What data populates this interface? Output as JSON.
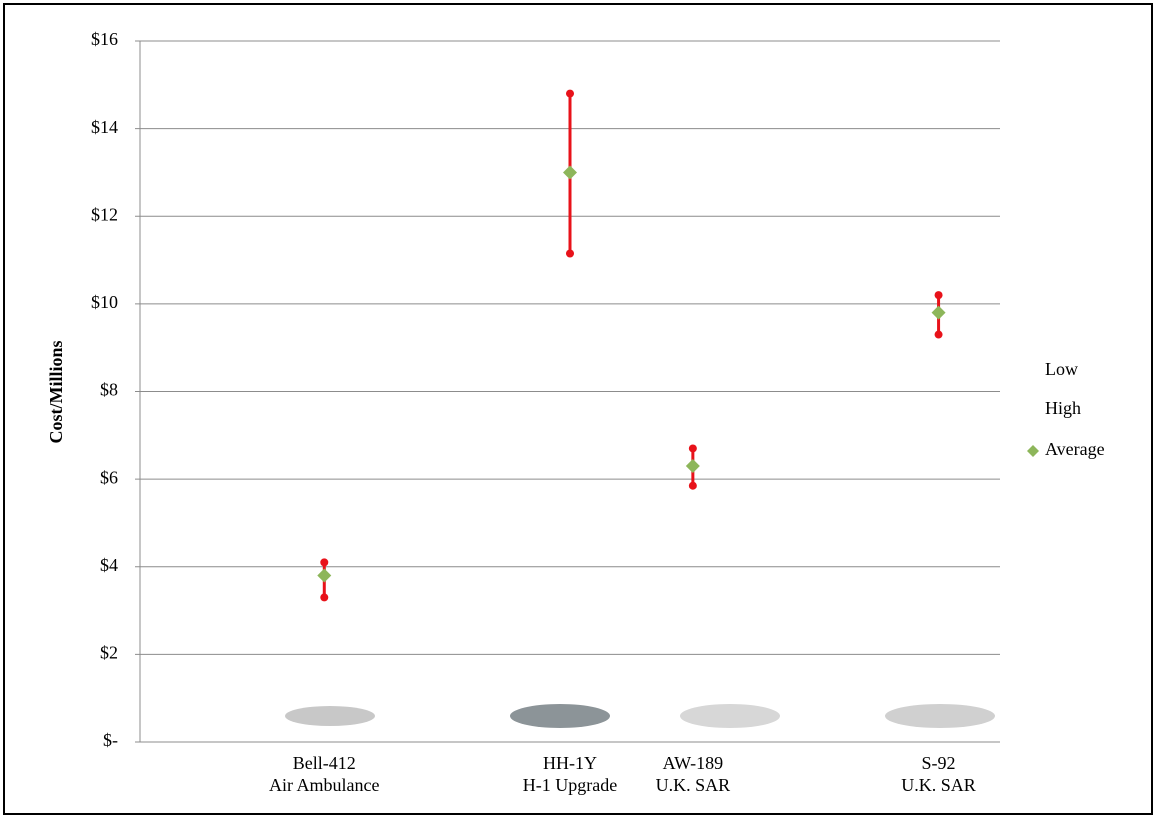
{
  "chart_data": {
    "type": "hilo",
    "y_axis_label": "Cost/Millions",
    "categories": [
      null,
      "Bell-412\nAir Ambulance",
      null,
      "HH-1Y\nH-1 Upgrade",
      "AW-189\nU.K. SAR",
      null,
      "S-92\nU.K. SAR"
    ],
    "series": [
      {
        "name": "Low",
        "values": [
          null,
          3.3,
          null,
          11.15,
          5.85,
          null,
          9.3
        ]
      },
      {
        "name": "High",
        "values": [
          null,
          4.1,
          null,
          14.8,
          6.7,
          null,
          10.2
        ]
      },
      {
        "name": "Average",
        "color": "#8db65a",
        "values": [
          null,
          3.8,
          null,
          13.0,
          6.3,
          null,
          9.8
        ]
      }
    ],
    "hi_lo_color": "#e8121a",
    "ylim": [
      0,
      16
    ],
    "yticks": [
      {
        "value": 0,
        "label": "$-"
      },
      {
        "value": 2,
        "label": "$2"
      },
      {
        "value": 4,
        "label": "$4"
      },
      {
        "value": 6,
        "label": "$6"
      },
      {
        "value": 8,
        "label": "$8"
      },
      {
        "value": 10,
        "label": "$10"
      },
      {
        "value": 12,
        "label": "$12"
      },
      {
        "value": 14,
        "label": "$14"
      },
      {
        "value": 16,
        "label": "$16"
      }
    ],
    "grid": true
  }
}
